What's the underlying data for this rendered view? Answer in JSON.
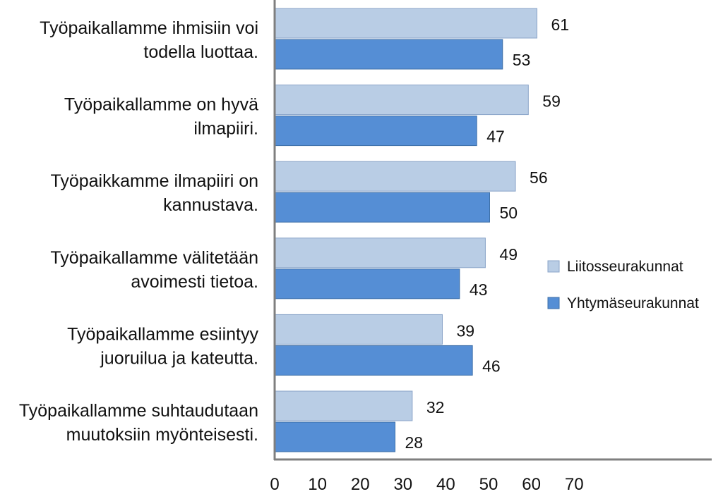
{
  "chart_data": {
    "type": "bar",
    "orientation": "horizontal",
    "categories": [
      [
        "Työpaikallamme ihmisiin voi",
        "todella luottaa."
      ],
      [
        "Työpaikallamme on hyvä",
        "ilmapiiri."
      ],
      [
        "Työpaikkamme ilmapiiri on",
        "kannustava."
      ],
      [
        "Työpaikallamme välitetään",
        "avoimesti tietoa."
      ],
      [
        "Työpaikallamme esiintyy",
        "juoruilua ja kateutta."
      ],
      [
        "Työpaikallamme suhtaudutaan",
        "muutoksiin myönteisesti."
      ]
    ],
    "series": [
      {
        "name": "Liitosseurakunnat",
        "color": "#b9cde5",
        "values": [
          61,
          59,
          56,
          49,
          39,
          32
        ]
      },
      {
        "name": "Yhtymäseurakunnat",
        "color": "#558ed5",
        "values": [
          53,
          47,
          50,
          43,
          46,
          28
        ]
      }
    ],
    "xlim": [
      0,
      70
    ],
    "xticks": [
      "0",
      "10",
      "20",
      "30",
      "40",
      "50",
      "60",
      "70"
    ],
    "title": "",
    "xlabel": "",
    "ylabel": "",
    "grid": false,
    "legend_position": "right"
  }
}
